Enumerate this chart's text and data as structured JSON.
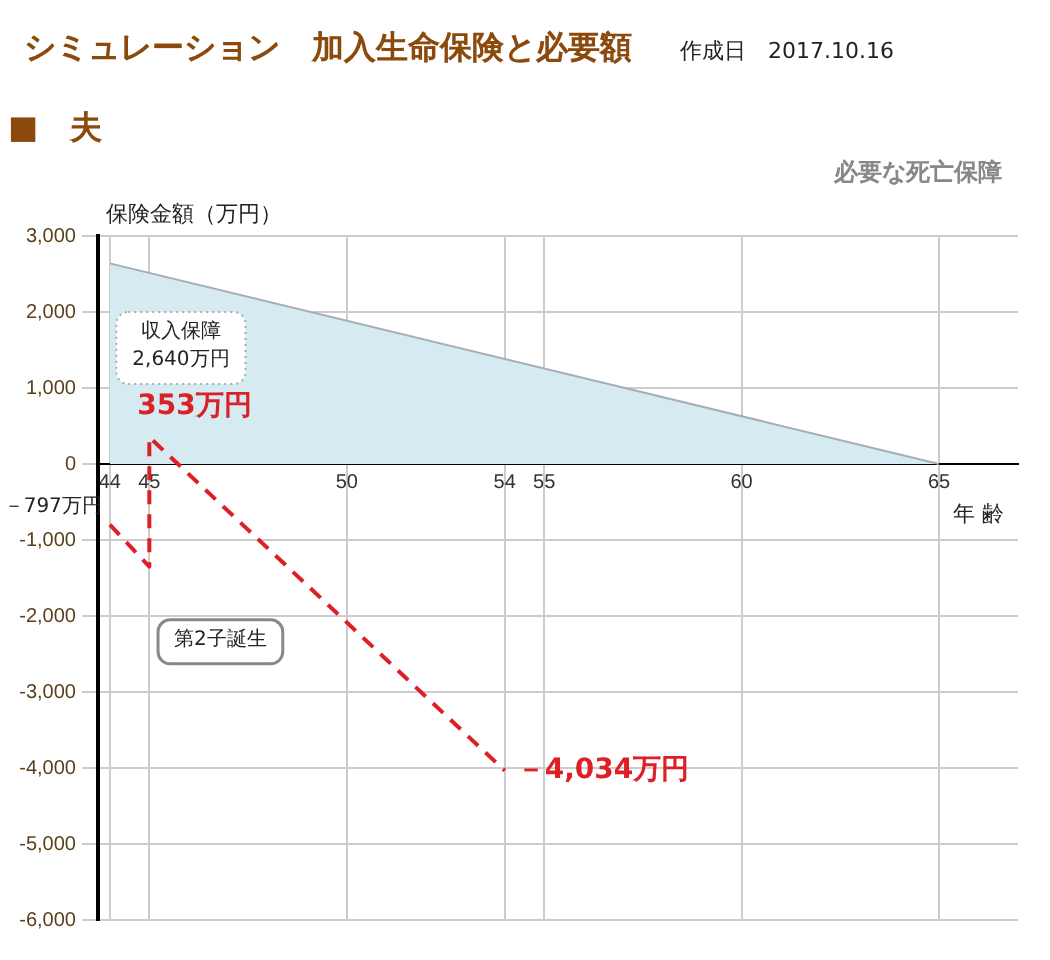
{
  "chart_data": {
    "type": "area",
    "title": "シミュレーション　加入生命保険と必要額",
    "subtitle": "■　夫",
    "xlabel": "年 齢",
    "ylabel": "保険金額（万円）",
    "xlim": [
      43.7,
      67
    ],
    "xticks": [
      44,
      45,
      50,
      54,
      55,
      60,
      65
    ],
    "ylim": [
      -6000,
      3000
    ],
    "yticks": [
      {
        "value": 3000,
        "label": "3,000"
      },
      {
        "value": 2000,
        "label": "2,000"
      },
      {
        "value": 1000,
        "label": "1,000"
      },
      {
        "value": 0,
        "label": "0"
      },
      {
        "value": -1000,
        "label": "-1,000"
      },
      {
        "value": -2000,
        "label": "-2,000"
      },
      {
        "value": -3000,
        "label": "-3,000"
      },
      {
        "value": -4000,
        "label": "-4,000"
      },
      {
        "value": -5000,
        "label": "-5,000"
      },
      {
        "value": -6000,
        "label": "-6,000"
      }
    ],
    "series": [
      {
        "color": "#d6eaf2",
        "x": [
          44,
          65
        ],
        "values": [
          2640,
          0
        ]
      },
      {
        "type": "line",
        "color": "#dd1f26",
        "line_style": "dashed",
        "marker": "none",
        "x": [
          44,
          45,
          45,
          54
        ],
        "values": [
          -797,
          -1350,
          353,
          -4034
        ]
      }
    ],
    "annotations": [
      "作成日　2017.10.16",
      "必要な死亡保障",
      "収入保障\n2,640万円",
      "第2子誕生",
      {
        "text": "353万円",
        "x": 45,
        "y": 353
      },
      {
        "text": "－4,034万円",
        "x": 54,
        "y": -4034
      },
      {
        "text": "－797万円",
        "x": 44,
        "y": -797
      }
    ],
    "grid": true,
    "legend": false
  }
}
